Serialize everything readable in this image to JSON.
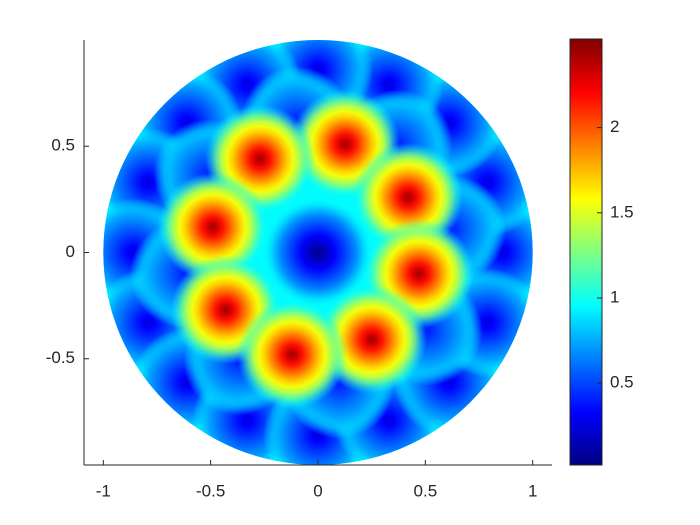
{
  "chart_data": {
    "type": "heatmap",
    "colormap": "jet",
    "xlim": [
      -1.09,
      1.09
    ],
    "ylim": [
      -1,
      1
    ],
    "xticks": [
      -1,
      -0.5,
      0,
      0.5,
      1
    ],
    "yticks": [
      -0.5,
      0,
      0.5
    ],
    "clim": [
      0.02,
      2.52
    ],
    "cticks": [
      0.5,
      1,
      1.5,
      2
    ],
    "disk_value": 0.95,
    "points": {
      "x": [
        0.86,
        0.79,
        0.61,
        0.33,
        0,
        -0.33,
        -0.61,
        -0.79,
        -0.86,
        -0.79,
        -0.61,
        -0.33,
        0,
        0.33,
        0.61,
        0.79,
        0.62,
        0.37,
        -0.1,
        -0.51,
        -0.62,
        -0.37,
        0.1,
        0.51,
        0,
        0.126,
        -0.27,
        0.42,
        -0.49,
        0.47,
        -0.43,
        0.25,
        -0.12
      ],
      "y": [
        0,
        0.33,
        0.61,
        0.79,
        0.86,
        0.79,
        0.61,
        0.33,
        0,
        -0.33,
        -0.61,
        -0.79,
        -0.86,
        -0.79,
        -0.61,
        -0.33,
        0.11,
        0.51,
        0.62,
        0.37,
        -0.1,
        -0.51,
        -0.62,
        -0.37,
        0,
        0.51,
        0.44,
        0.26,
        0.12,
        -0.1,
        -0.27,
        -0.41,
        -0.48
      ],
      "values": [
        0.25,
        0.25,
        0.25,
        0.25,
        0.25,
        0.25,
        0.25,
        0.25,
        0.25,
        0.25,
        0.25,
        0.25,
        0.25,
        0.25,
        0.25,
        0.25,
        0.4,
        0.4,
        0.4,
        0.4,
        0.4,
        0.4,
        0.4,
        0.4,
        0.05,
        2.45,
        2.45,
        2.45,
        2.45,
        2.45,
        2.45,
        2.45,
        2.45
      ]
    }
  }
}
